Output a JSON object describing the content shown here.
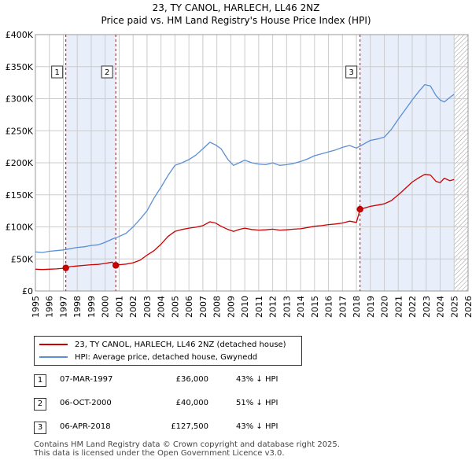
{
  "title_line1": "23, TY CANOL, HARLECH, LL46 2NZ",
  "title_line2": "Price paid vs. HM Land Registry's House Price Index (HPI)",
  "colors": {
    "property": "#cc0000",
    "hpi": "#5b8fd6",
    "shade": "#e8eefa",
    "grid": "#cccccc",
    "vline": "#cc0000"
  },
  "legend": {
    "property_label": "23, TY CANOL, HARLECH, LL46 2NZ (detached house)",
    "hpi_label": "HPI: Average price, detached house, Gwynedd"
  },
  "transactions": [
    {
      "num": "1",
      "date": "07-MAR-1997",
      "price": "£36,000",
      "hpi": "43% ↓ HPI"
    },
    {
      "num": "2",
      "date": "06-OCT-2000",
      "price": "£40,000",
      "hpi": "51% ↓ HPI"
    },
    {
      "num": "3",
      "date": "06-APR-2018",
      "price": "£127,500",
      "hpi": "43% ↓ HPI"
    }
  ],
  "footer": {
    "line1": "Contains HM Land Registry data © Crown copyright and database right 2025.",
    "line2": "This data is licensed under the Open Government Licence v3.0."
  },
  "chart_data": {
    "type": "line",
    "title": "Price paid vs. HM Land Registry's House Price Index (HPI)",
    "xlim": [
      1995,
      2026
    ],
    "ylim": [
      0,
      400000
    ],
    "x_ticks": [
      "1995",
      "1996",
      "1997",
      "1998",
      "1999",
      "2000",
      "2001",
      "2002",
      "2003",
      "2004",
      "2005",
      "2006",
      "2007",
      "2008",
      "2009",
      "2010",
      "2011",
      "2012",
      "2013",
      "2014",
      "2015",
      "2016",
      "2017",
      "2018",
      "2019",
      "2020",
      "2021",
      "2022",
      "2023",
      "2024",
      "2025",
      "2026"
    ],
    "y_ticks": [
      {
        "value": 0,
        "label": "£0"
      },
      {
        "value": 50000,
        "label": "£50K"
      },
      {
        "value": 100000,
        "label": "£100K"
      },
      {
        "value": 150000,
        "label": "£150K"
      },
      {
        "value": 200000,
        "label": "£200K"
      },
      {
        "value": 250000,
        "label": "£250K"
      },
      {
        "value": 300000,
        "label": "£300K"
      },
      {
        "value": 350000,
        "label": "£350K"
      },
      {
        "value": 400000,
        "label": "£400K"
      }
    ],
    "shaded_ranges": [
      [
        1997.18,
        2000.76
      ],
      [
        2018.26,
        2025.0
      ]
    ],
    "hatched_range": [
      2025.0,
      2026.0
    ],
    "sales": [
      {
        "label": "1",
        "x": 1997.18,
        "y": 36000
      },
      {
        "label": "2",
        "x": 2000.76,
        "y": 40000
      },
      {
        "label": "3",
        "x": 2018.26,
        "y": 127500
      }
    ],
    "series": [
      {
        "name": "HPI: Average price, detached house, Gwynedd",
        "x": [
          1995.0,
          1995.5,
          1996.0,
          1996.5,
          1997.0,
          1997.5,
          1998.0,
          1998.5,
          1999.0,
          1999.5,
          2000.0,
          2000.5,
          2001.0,
          2001.5,
          2002.0,
          2002.5,
          2003.0,
          2003.5,
          2004.0,
          2004.5,
          2005.0,
          2005.5,
          2006.0,
          2006.5,
          2007.0,
          2007.5,
          2007.9,
          2008.3,
          2008.8,
          2009.2,
          2009.6,
          2010.0,
          2010.5,
          2011.0,
          2011.5,
          2012.0,
          2012.5,
          2013.0,
          2013.5,
          2014.0,
          2014.5,
          2015.0,
          2015.5,
          2016.0,
          2016.5,
          2017.0,
          2017.5,
          2018.0,
          2018.5,
          2019.0,
          2019.5,
          2020.0,
          2020.5,
          2021.0,
          2021.5,
          2022.0,
          2022.5,
          2022.9,
          2023.3,
          2023.7,
          2024.0,
          2024.3,
          2024.7,
          2025.0
        ],
        "y": [
          61000,
          60000,
          62000,
          63000,
          64000,
          66000,
          68000,
          69000,
          71000,
          72000,
          76000,
          81000,
          85000,
          90000,
          100000,
          112000,
          125000,
          145000,
          162000,
          180000,
          196000,
          200000,
          205000,
          212000,
          222000,
          232000,
          228000,
          222000,
          205000,
          196000,
          200000,
          204000,
          200000,
          198000,
          197000,
          200000,
          196000,
          197000,
          199000,
          202000,
          206000,
          211000,
          214000,
          217000,
          220000,
          224000,
          227000,
          223000,
          229000,
          235000,
          237000,
          240000,
          252000,
          268000,
          283000,
          298000,
          312000,
          322000,
          320000,
          305000,
          298000,
          295000,
          302000,
          307000
        ]
      },
      {
        "name": "23, TY CANOL, HARLECH, LL46 2NZ (detached house)",
        "x": [
          1995.0,
          1995.5,
          1996.0,
          1996.5,
          1997.0,
          1997.18,
          1997.5,
          1998.0,
          1998.5,
          1999.0,
          1999.5,
          2000.0,
          2000.5,
          2000.76,
          2001.0,
          2001.5,
          2002.0,
          2002.5,
          2003.0,
          2003.5,
          2004.0,
          2004.5,
          2005.0,
          2005.5,
          2006.0,
          2006.5,
          2007.0,
          2007.5,
          2007.9,
          2008.3,
          2008.8,
          2009.2,
          2009.6,
          2010.0,
          2010.5,
          2011.0,
          2011.5,
          2012.0,
          2012.5,
          2013.0,
          2013.5,
          2014.0,
          2014.5,
          2015.0,
          2015.5,
          2016.0,
          2016.5,
          2017.0,
          2017.5,
          2018.0,
          2018.26,
          2018.5,
          2019.0,
          2019.5,
          2020.0,
          2020.5,
          2021.0,
          2021.5,
          2022.0,
          2022.5,
          2022.9,
          2023.3,
          2023.7,
          2024.0,
          2024.3,
          2024.7,
          2025.0
        ],
        "y": [
          34000,
          33500,
          34000,
          34500,
          35500,
          36000,
          38000,
          39000,
          40000,
          41000,
          41500,
          43000,
          45000,
          40000,
          41000,
          42000,
          44000,
          48000,
          56000,
          63000,
          73000,
          85000,
          93000,
          96000,
          98000,
          99500,
          102000,
          108000,
          106000,
          101000,
          96000,
          93000,
          96000,
          98000,
          96000,
          95000,
          95500,
          96500,
          95000,
          95500,
          96500,
          97000,
          99000,
          101000,
          102000,
          103500,
          104500,
          106000,
          109000,
          107000,
          127500,
          129000,
          132000,
          134000,
          136000,
          141000,
          150000,
          160000,
          170000,
          177000,
          182000,
          181000,
          171000,
          169000,
          176000,
          172000,
          174000
        ]
      }
    ]
  }
}
